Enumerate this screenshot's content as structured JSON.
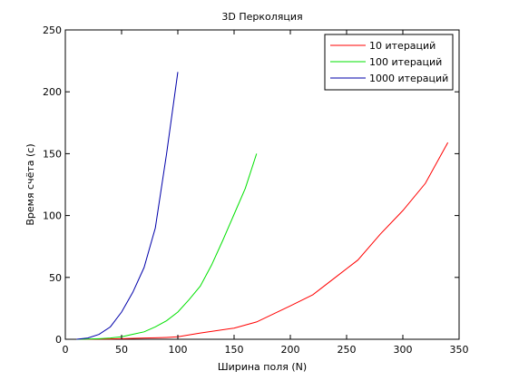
{
  "chart_data": {
    "type": "line",
    "title": "3D Перколяция",
    "xlabel": "Ширина поля (N)",
    "ylabel": "Время счёта (с)",
    "xlim": [
      0,
      350
    ],
    "ylim": [
      0,
      250
    ],
    "xticks": [
      0,
      50,
      100,
      150,
      200,
      250,
      300,
      350
    ],
    "yticks": [
      0,
      50,
      100,
      150,
      200,
      250
    ],
    "legend_position": "top-right",
    "grid": false,
    "series": [
      {
        "name": "10 итераций",
        "color": "#ff0000",
        "x": [
          10,
          20,
          30,
          40,
          50,
          60,
          70,
          80,
          90,
          100,
          120,
          150,
          170,
          200,
          220,
          240,
          260,
          280,
          300,
          320,
          340
        ],
        "y": [
          0,
          0.1,
          0.2,
          0.3,
          0.5,
          0.7,
          1,
          1.2,
          1.5,
          2,
          5,
          9,
          14,
          27,
          36,
          50,
          64,
          85,
          104,
          126,
          159
        ]
      },
      {
        "name": "100 итераций",
        "color": "#00e000",
        "x": [
          10,
          20,
          30,
          40,
          50,
          60,
          70,
          80,
          90,
          100,
          110,
          120,
          130,
          140,
          150,
          160,
          170
        ],
        "y": [
          0,
          0.2,
          0.5,
          1,
          2,
          4,
          6,
          10,
          15,
          22,
          32,
          43,
          60,
          80,
          101,
          122,
          150
        ]
      },
      {
        "name": "1000 итераций",
        "color": "#0000aa",
        "x": [
          10,
          20,
          30,
          40,
          50,
          60,
          70,
          80,
          90,
          100
        ],
        "y": [
          0,
          1,
          4,
          10,
          22,
          38,
          58,
          90,
          150,
          216
        ]
      }
    ]
  }
}
